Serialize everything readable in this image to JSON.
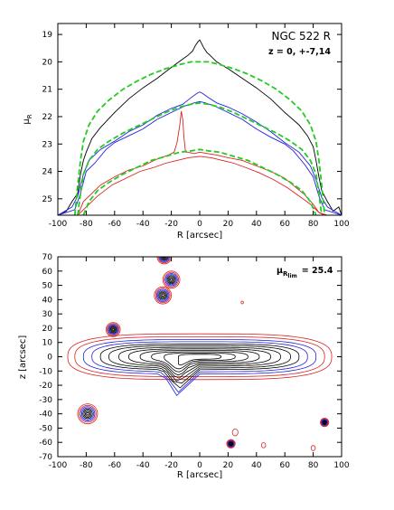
{
  "chart_data": [
    {
      "type": "line",
      "title": "NGC 522 R",
      "subtitle": "z = 0, +-7,14",
      "xlabel": "R [arcsec]",
      "ylabel_main": "μ",
      "ylabel_sub": "R",
      "xlim": [
        -100,
        100
      ],
      "ylim": [
        25.6,
        18.6
      ],
      "y_inverted": true,
      "xticks": [
        -100,
        -80,
        -60,
        -40,
        -20,
        0,
        20,
        40,
        60,
        80,
        100
      ],
      "yticks": [
        19,
        20,
        21,
        22,
        23,
        24,
        25
      ],
      "series": [
        {
          "color": "#000000",
          "style": "solid",
          "x": [
            -100,
            -94,
            -90,
            -86,
            -84,
            -82,
            -80,
            -76,
            -70,
            -60,
            -50,
            -40,
            -30,
            -20,
            -12,
            -8,
            -5,
            -3,
            -1,
            0,
            1,
            3,
            5,
            8,
            12,
            20,
            30,
            40,
            50,
            60,
            70,
            76,
            80,
            82,
            84,
            86,
            90,
            94,
            98,
            100
          ],
          "y": [
            25.6,
            25.45,
            25.1,
            24.8,
            24.1,
            23.6,
            23.3,
            22.8,
            22.4,
            21.85,
            21.35,
            20.95,
            20.6,
            20.2,
            19.9,
            19.75,
            19.6,
            19.4,
            19.25,
            19.2,
            19.3,
            19.5,
            19.65,
            19.8,
            20.0,
            20.25,
            20.6,
            20.95,
            21.35,
            21.85,
            22.3,
            22.7,
            23.1,
            23.6,
            24.2,
            24.7,
            25.1,
            25.45,
            25.3,
            25.6
          ]
        },
        {
          "color": "#2222dd",
          "style": "solid",
          "x": [
            -100,
            -90,
            -86,
            -82,
            -78,
            -70,
            -60,
            -50,
            -40,
            -30,
            -20,
            -12,
            -6,
            -2,
            0,
            2,
            6,
            12,
            20,
            30,
            40,
            50,
            60,
            70,
            78,
            82,
            86,
            90,
            100
          ],
          "y": [
            25.6,
            25.3,
            24.9,
            24.1,
            23.6,
            23.2,
            22.9,
            22.55,
            22.3,
            21.95,
            21.7,
            21.55,
            21.3,
            21.15,
            21.1,
            21.15,
            21.3,
            21.5,
            21.65,
            21.9,
            22.2,
            22.55,
            22.95,
            23.3,
            23.8,
            24.3,
            24.95,
            25.3,
            25.6
          ]
        },
        {
          "color": "#2222dd",
          "style": "solid",
          "x": [
            -100,
            -88,
            -84,
            -80,
            -74,
            -66,
            -60,
            -50,
            -40,
            -30,
            -20,
            -10,
            -4,
            0,
            4,
            10,
            20,
            30,
            40,
            50,
            60,
            66,
            74,
            80,
            84,
            88,
            100
          ],
          "y": [
            25.6,
            25.4,
            24.8,
            24.0,
            23.7,
            23.2,
            22.95,
            22.7,
            22.45,
            22.1,
            21.85,
            21.6,
            21.5,
            21.45,
            21.5,
            21.6,
            21.85,
            22.1,
            22.45,
            22.75,
            23.0,
            23.25,
            23.75,
            24.2,
            24.9,
            25.4,
            25.6
          ]
        },
        {
          "color": "#dd2222",
          "style": "solid",
          "x": [
            -100,
            -86,
            -82,
            -76,
            -70,
            -60,
            -50,
            -40,
            -30,
            -22,
            -18,
            -16,
            -14,
            -13,
            -12,
            -11,
            -10,
            -8,
            -4,
            0,
            6,
            12,
            20,
            30,
            40,
            50,
            60,
            68,
            74,
            80,
            84,
            88,
            100
          ],
          "y": [
            25.6,
            25.6,
            25.1,
            24.8,
            24.5,
            24.2,
            23.95,
            23.8,
            23.55,
            23.4,
            23.3,
            22.95,
            22.3,
            21.8,
            22.1,
            22.8,
            23.3,
            23.3,
            23.35,
            23.3,
            23.35,
            23.4,
            23.5,
            23.6,
            23.8,
            24.0,
            24.25,
            24.6,
            24.85,
            25.2,
            25.5,
            25.6,
            25.6
          ]
        },
        {
          "color": "#dd2222",
          "style": "solid",
          "x": [
            -100,
            -86,
            -80,
            -72,
            -62,
            -52,
            -42,
            -32,
            -24,
            -16,
            -8,
            0,
            8,
            16,
            24,
            32,
            42,
            52,
            62,
            70,
            78,
            84,
            90,
            100
          ],
          "y": [
            25.6,
            25.6,
            25.3,
            24.9,
            24.5,
            24.25,
            24.0,
            23.85,
            23.7,
            23.6,
            23.5,
            23.45,
            23.5,
            23.6,
            23.7,
            23.85,
            24.05,
            24.3,
            24.6,
            24.9,
            25.2,
            25.5,
            25.6,
            25.6
          ]
        },
        {
          "color": "#22cc22",
          "style": "dashed",
          "x": [
            -88,
            -86,
            -84,
            -82,
            -78,
            -72,
            -64,
            -54,
            -44,
            -34,
            -24,
            -14,
            -6,
            0,
            6,
            14,
            24,
            34,
            44,
            54,
            64,
            72,
            78,
            82,
            84,
            86,
            88
          ],
          "y": [
            25.6,
            24.5,
            23.6,
            22.9,
            22.3,
            21.8,
            21.4,
            21.0,
            20.7,
            20.45,
            20.25,
            20.1,
            20.0,
            20.0,
            20.0,
            20.1,
            20.25,
            20.45,
            20.7,
            21.0,
            21.4,
            21.8,
            22.3,
            22.9,
            23.6,
            24.5,
            25.6
          ]
        },
        {
          "color": "#22cc22",
          "style": "dashed",
          "x": [
            -86,
            -84,
            -82,
            -78,
            -72,
            -64,
            -54,
            -44,
            -34,
            -24,
            -14,
            -6,
            0,
            6,
            14,
            24,
            34,
            44,
            54,
            64,
            72,
            78,
            82,
            84,
            86
          ],
          "y": [
            25.6,
            24.8,
            24.1,
            23.6,
            23.2,
            22.9,
            22.6,
            22.35,
            22.1,
            21.85,
            21.65,
            21.55,
            21.5,
            21.55,
            21.65,
            21.85,
            22.1,
            22.35,
            22.6,
            22.9,
            23.2,
            23.6,
            24.1,
            24.8,
            25.6
          ]
        },
        {
          "color": "#22cc22",
          "style": "dashed",
          "x": [
            -82,
            -78,
            -72,
            -64,
            -54,
            -44,
            -34,
            -24,
            -14,
            -6,
            0,
            6,
            14,
            24,
            34,
            44,
            54,
            64,
            72,
            78,
            82
          ],
          "y": [
            25.6,
            25.1,
            24.7,
            24.4,
            24.1,
            23.85,
            23.6,
            23.45,
            23.3,
            23.25,
            23.2,
            23.25,
            23.3,
            23.45,
            23.6,
            23.85,
            24.1,
            24.4,
            24.7,
            25.1,
            25.6
          ]
        }
      ]
    },
    {
      "type": "contour",
      "annotation_main": "μ",
      "annotation_sub": "R",
      "annotation_subsub": "lim",
      "annotation_value": "= 25.4",
      "xlabel": "R [arcsec]",
      "ylabel": "z [arcsec]",
      "xlim": [
        -100,
        100
      ],
      "ylim": [
        -70,
        70
      ],
      "xticks": [
        -100,
        -80,
        -60,
        -40,
        -20,
        0,
        20,
        40,
        60,
        80,
        100
      ],
      "yticks": [
        -70,
        -60,
        -50,
        -40,
        -30,
        -20,
        -10,
        0,
        10,
        20,
        30,
        40,
        50,
        60,
        70
      ],
      "disk_contours": [
        {
          "color": "#dd2222",
          "a": 93,
          "b": 16
        },
        {
          "color": "#dd2222",
          "a": 88,
          "b": 14
        },
        {
          "color": "#2222dd",
          "a": 82,
          "b": 12
        },
        {
          "color": "#2222dd",
          "a": 76,
          "b": 10.5
        },
        {
          "color": "#000000",
          "a": 70,
          "b": 9
        },
        {
          "color": "#000000",
          "a": 64,
          "b": 7.8
        },
        {
          "color": "#000000",
          "a": 57,
          "b": 6.6
        },
        {
          "color": "#000000",
          "a": 50,
          "b": 5.5
        },
        {
          "color": "#000000",
          "a": 42,
          "b": 4.5
        },
        {
          "color": "#000000",
          "a": 34,
          "b": 3.5
        },
        {
          "color": "#000000",
          "a": 25,
          "b": 2.6
        },
        {
          "color": "#000000",
          "a": 15,
          "b": 1.7
        }
      ],
      "stars": [
        {
          "x": -25,
          "y": 70,
          "r": 5
        },
        {
          "x": -20,
          "y": 54,
          "r": 6
        },
        {
          "x": -26,
          "y": 43,
          "r": 6
        },
        {
          "x": -61,
          "y": 19,
          "r": 5
        },
        {
          "x": -79,
          "y": -40,
          "r": 7
        },
        {
          "x": 22,
          "y": -61,
          "r": 3
        },
        {
          "x": 88,
          "y": -46,
          "r": 3
        }
      ],
      "knots": [
        {
          "x": 25,
          "y": -53,
          "r": 2
        },
        {
          "x": 45,
          "y": -62,
          "r": 1.5
        },
        {
          "x": 80,
          "y": -64,
          "r": 1.5
        },
        {
          "x": 30,
          "y": 38,
          "r": 0.8
        }
      ]
    }
  ]
}
